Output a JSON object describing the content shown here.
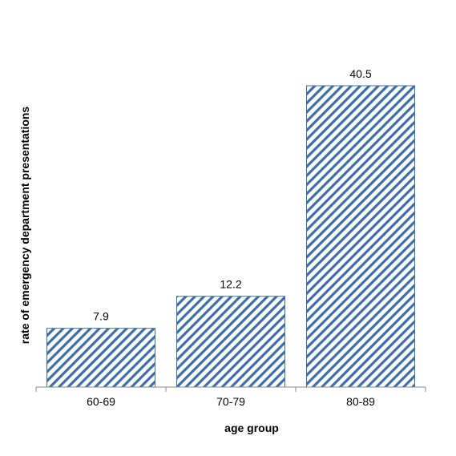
{
  "chart_data": {
    "type": "bar",
    "title": "",
    "xlabel": "age group",
    "ylabel": "rate of emergency department presentations",
    "categories": [
      "60-69",
      "70-79",
      "80-89"
    ],
    "values": [
      7.9,
      12.2,
      40.5
    ],
    "data_labels": [
      "7.9",
      "12.2",
      "40.5"
    ],
    "ylim": [
      0,
      40.5
    ],
    "grid": false,
    "legend": "none",
    "bar_fill": "diagonal-hatch",
    "colors": {
      "hatch": "#3d6fa6",
      "bar_outline": "#3d6fa6",
      "axis": "#888888",
      "text": "#000000"
    }
  }
}
